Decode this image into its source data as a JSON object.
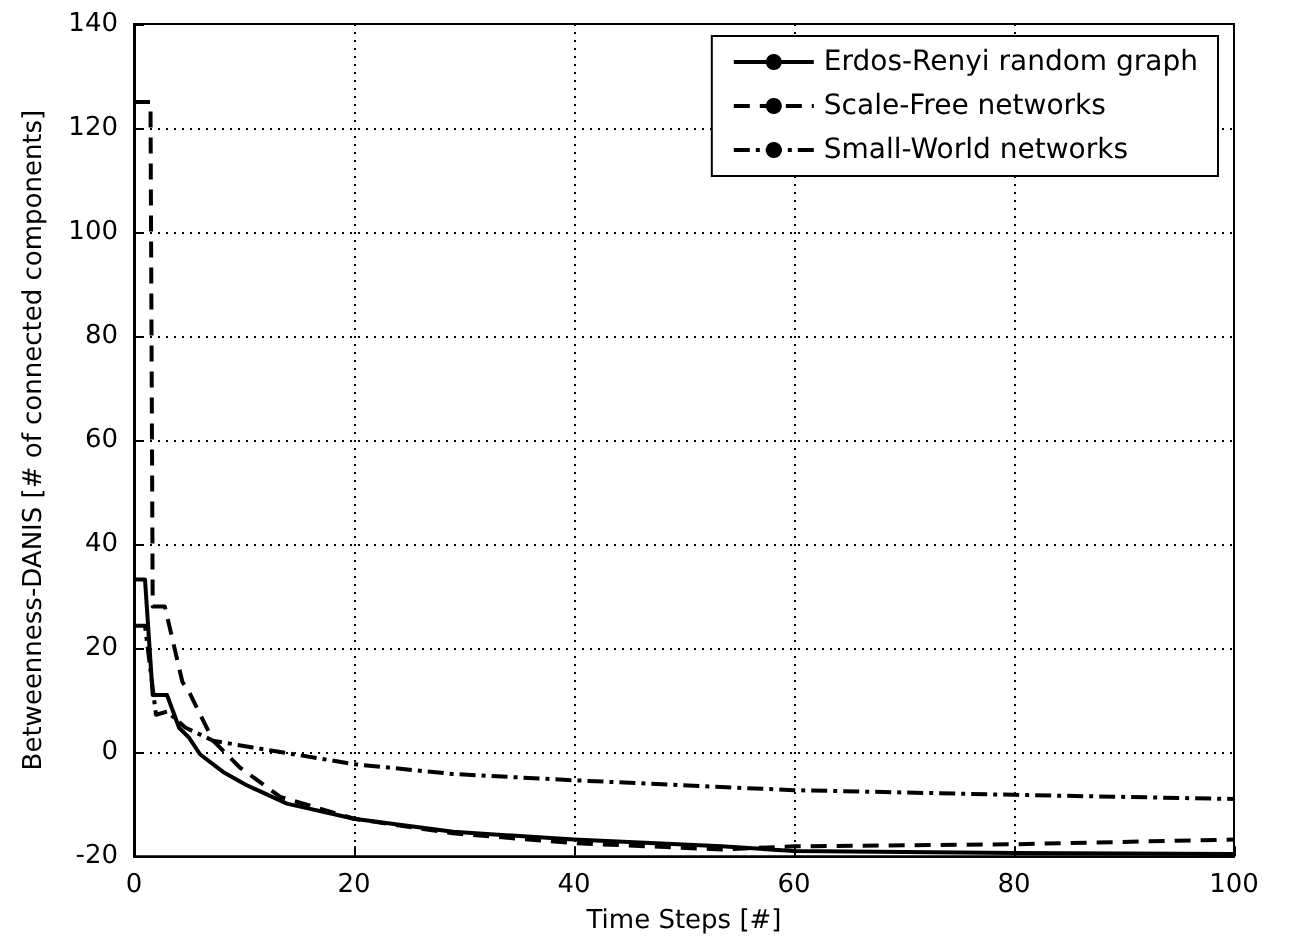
{
  "chart_data": {
    "type": "line",
    "xlabel": "Time Steps [#]",
    "ylabel": "Betweenness-DANIS [# of connected components]",
    "xlim": [
      0,
      100
    ],
    "xticks": [
      0,
      20,
      40,
      60,
      80,
      100
    ],
    "ylim": [
      -20,
      140
    ],
    "yticks": [
      -20,
      0,
      20,
      40,
      60,
      80,
      100,
      120,
      140
    ],
    "grid": true,
    "legend": "top right",
    "marker": "none",
    "series": [
      {
        "name": "Erdos-Renyi random graph",
        "color": "#000000",
        "line_style": "solid",
        "x": [
          0,
          1,
          1.7,
          3,
          4.1,
          5,
          6,
          8.1,
          10.2,
          13.9,
          20,
          29,
          40,
          53.4,
          60,
          80,
          100
        ],
        "values": [
          33.2,
          33.2,
          11,
          11,
          4.7,
          2.8,
          -0.4,
          -3.8,
          -6.3,
          -9.9,
          -12.8,
          -15.3,
          -16.8,
          -18.1,
          -19,
          -19.4,
          -19.6
        ]
      },
      {
        "name": "Scale-Free networks",
        "color": "#000000",
        "line_style": "dashed",
        "x": [
          0,
          1.5,
          1.7,
          2.8,
          4.4,
          5,
          7.2,
          9.6,
          13.3,
          20,
          29,
          40,
          53.4,
          60,
          80,
          100
        ],
        "values": [
          125,
          125,
          28,
          28,
          13.5,
          11.6,
          2.2,
          -2.9,
          -8.6,
          -12.8,
          -15.6,
          -17.5,
          -18.7,
          -18.1,
          -17.7,
          -16.8
        ]
      },
      {
        "name": "Small-World networks",
        "color": "#000000",
        "line_style": "dashdot",
        "x": [
          0,
          1,
          2,
          3,
          4.7,
          7.2,
          10.8,
          20,
          29,
          40,
          53.4,
          60,
          80,
          100
        ],
        "values": [
          24.3,
          24.3,
          7.2,
          7.8,
          4.7,
          2.2,
          0.9,
          -2.3,
          -4.2,
          -5.4,
          -6.7,
          -7.3,
          -8.2,
          -9
        ]
      }
    ]
  }
}
